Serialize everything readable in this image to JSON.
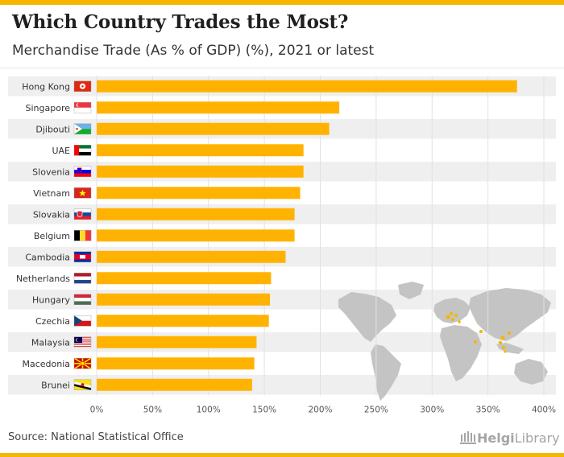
{
  "header": {
    "title": "Which Country Trades the Most?",
    "subtitle": "Merchandise Trade (As % of GDP) (%), 2021 or latest"
  },
  "footer": {
    "source": "Source: National Statistical Office",
    "logo_text_bold": "Helgi",
    "logo_text_rest": "Library"
  },
  "colors": {
    "bar": "#ffb300",
    "accent": "#f7b500",
    "row_band": "#efefef",
    "map_land": "#c4c4c4",
    "map_highlight": "#f7b500"
  },
  "chart_data": {
    "type": "bar",
    "orientation": "horizontal",
    "categories": [
      "Hong Kong",
      "Singapore",
      "Djibouti",
      "UAE",
      "Slovenia",
      "Vietnam",
      "Slovakia",
      "Belgium",
      "Cambodia",
      "Netherlands",
      "Hungary",
      "Czechia",
      "Malaysia",
      "Macedonia",
      "Brunei"
    ],
    "values": [
      376,
      217,
      208,
      185,
      185,
      182,
      177,
      177,
      169,
      156,
      155,
      154,
      143,
      141,
      139
    ],
    "xlim": [
      0,
      400
    ],
    "xticks": [
      0,
      50,
      100,
      150,
      200,
      250,
      300,
      350,
      400
    ],
    "xtick_labels": [
      "0%",
      "50%",
      "100%",
      "150%",
      "200%",
      "250%",
      "300%",
      "350%",
      "400%"
    ],
    "grid": true,
    "flags": [
      "hong-kong-flag",
      "singapore-flag",
      "djibouti-flag",
      "uae-flag",
      "slovenia-flag",
      "vietnam-flag",
      "slovakia-flag",
      "belgium-flag",
      "cambodia-flag",
      "netherlands-flag",
      "hungary-flag",
      "czechia-flag",
      "malaysia-flag",
      "macedonia-flag",
      "brunei-flag"
    ]
  }
}
